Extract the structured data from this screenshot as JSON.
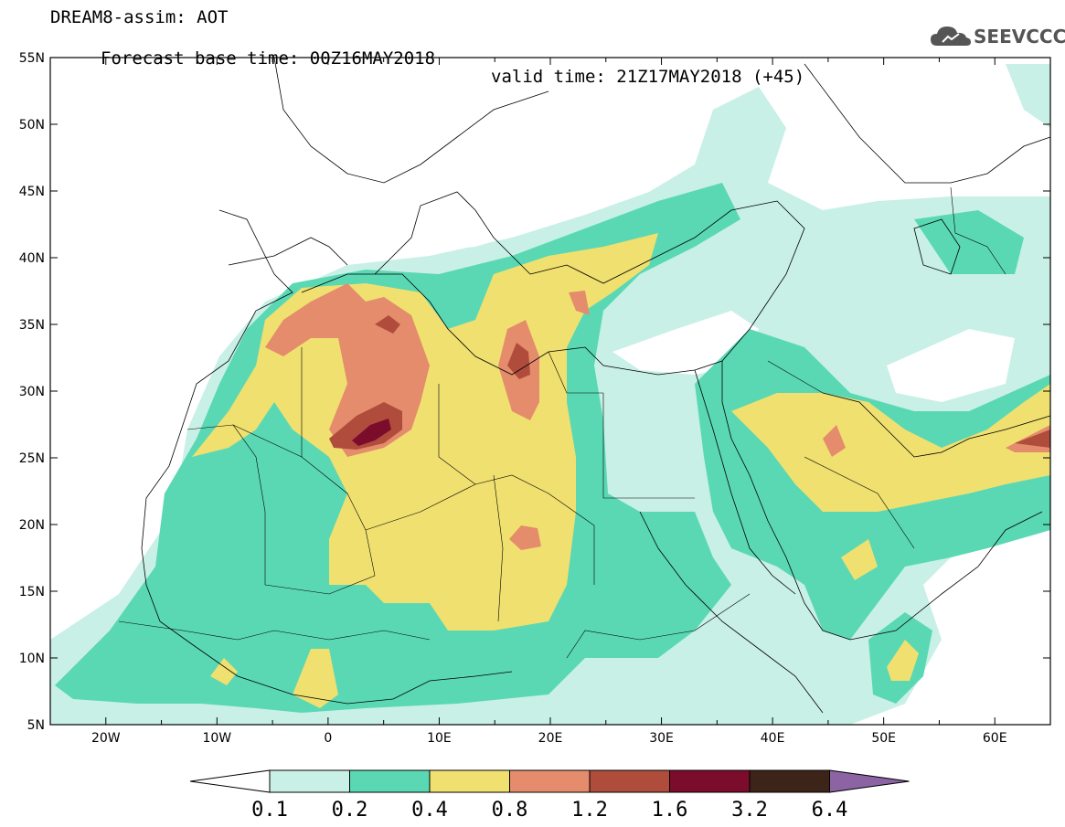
{
  "header": {
    "title_line1": "DREAM8-assim: AOT",
    "base_time_label": "Forecast base time: 00Z16MAY2018",
    "valid_time_label": "valid time: 21Z17MAY2018 (+45)",
    "logo_text": "SEEVCCC"
  },
  "map": {
    "lon_labels": [
      "20W",
      "10W",
      "0",
      "10E",
      "20E",
      "30E",
      "40E",
      "50E",
      "60E"
    ],
    "lat_labels": [
      "55N",
      "50N",
      "45N",
      "40N",
      "35N",
      "30N",
      "25N",
      "20N",
      "15N",
      "10N",
      "5N"
    ],
    "lon_range": [
      -25,
      65
    ],
    "lat_range": [
      5,
      55
    ]
  },
  "colorbar": {
    "levels": [
      "0.1",
      "0.2",
      "0.4",
      "0.8",
      "1.2",
      "1.6",
      "3.2",
      "6.4"
    ],
    "colors": [
      "#ffffff",
      "#c8f0e6",
      "#5ad8b4",
      "#f0e070",
      "#e48c6c",
      "#b04c3c",
      "#7c0c2c",
      "#3c2418",
      "#8c64a4"
    ]
  },
  "colors": {
    "very_light": "#c8f0e6",
    "green": "#5ad8b4",
    "yellow": "#f0e070",
    "orange": "#e48c6c",
    "brown": "#b04c3c",
    "maroon": "#7c0c2c"
  }
}
